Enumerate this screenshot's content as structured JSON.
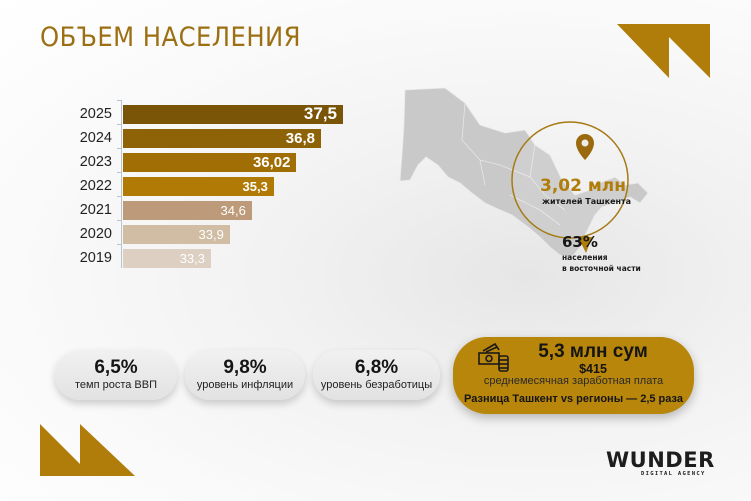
{
  "title": "ОБЪЕМ НАСЕЛЕНИЯ",
  "chart_data": {
    "type": "bar",
    "orientation": "horizontal",
    "title": "ОБЪЕМ НАСЕЛЕНИЯ",
    "xlabel": "",
    "ylabel": "",
    "unit": "млн",
    "categories": [
      "2025",
      "2024",
      "2023",
      "2022",
      "2021",
      "2020",
      "2019"
    ],
    "values": [
      37.5,
      36.8,
      36.02,
      35.3,
      34.6,
      33.9,
      33.3
    ],
    "value_labels": [
      "37,5",
      "36,8",
      "36,02",
      "35,3",
      "34,6",
      "33,9",
      "33,3"
    ],
    "colors": [
      "#7a5508",
      "#8e6207",
      "#a06e05",
      "#b07a04",
      "#bc9a7a",
      "#d1bca4",
      "#ddcfc2"
    ],
    "grid": false,
    "legend": null
  },
  "map": {
    "region_label": "Узбекистан",
    "tashkent_value": "3,02 млн",
    "tashkent_label": "жителей Ташкента",
    "east_value": "63%",
    "east_label_line1": "населения",
    "east_label_line2": "в восточной части",
    "accent": "#9c6f12"
  },
  "indicators": [
    {
      "value": "6,5%",
      "label": "темп роста ВВП"
    },
    {
      "value": "9,8%",
      "label": "уровень инфляции"
    },
    {
      "value": "6,8%",
      "label": "уровень безработицы"
    }
  ],
  "salary": {
    "value": "5,3 млн сум",
    "usd": "$415",
    "label": "среднемесячная заработная плата",
    "difference": "Разница Ташкент vs регионы — 2,5 раза",
    "icon": "money-coins-icon",
    "color": "#b8860b"
  },
  "logo": {
    "name": "WUNDER",
    "subtitle": "DIGITAL AGENCY"
  },
  "colors": {
    "accent": "#b07d0a",
    "title": "#9c6f12"
  }
}
